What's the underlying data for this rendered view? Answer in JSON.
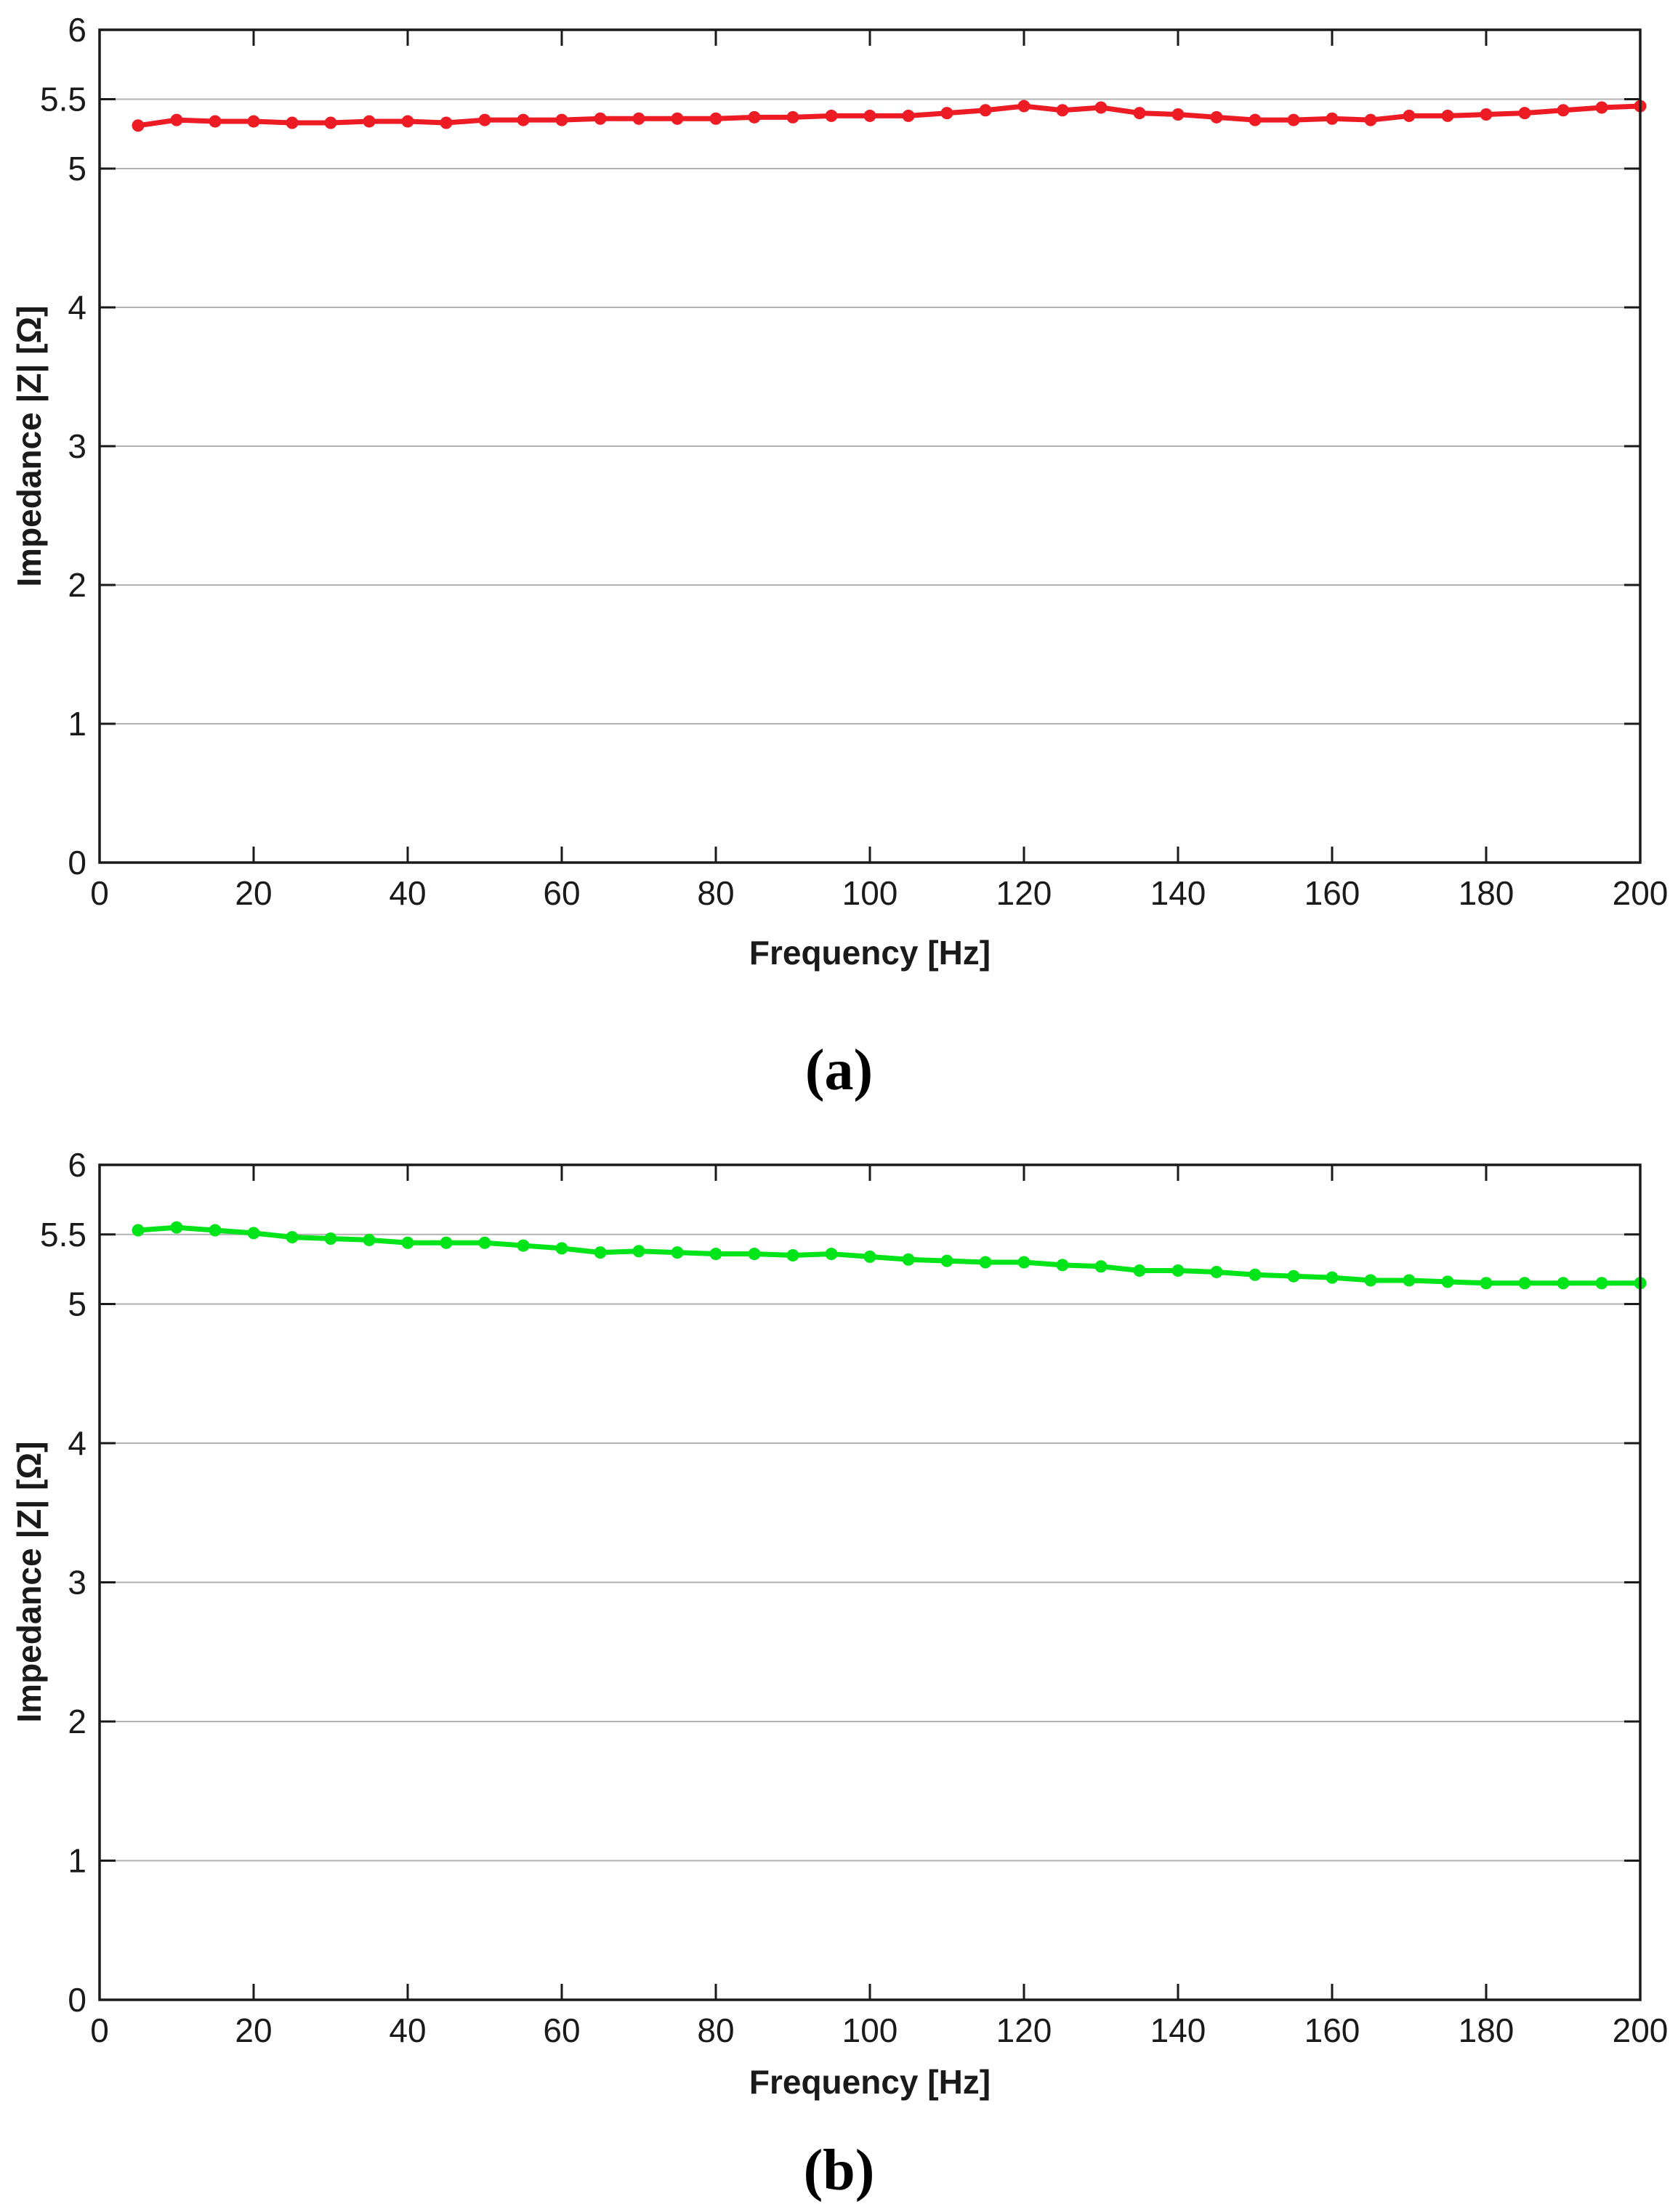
{
  "figure": {
    "background": "#ffffff",
    "axis_color": "#1a1a1a",
    "tick_label_color": "#1a1a1a"
  },
  "chart_data": [
    {
      "type": "line",
      "panel": "a",
      "caption": "(a)",
      "xlabel": "Frequency [Hz]",
      "ylabel": "Impedance |Z| [Ω]",
      "series_name": "impedance-vs-frequency-red",
      "series_color": "#ed1c24",
      "marker": "circle",
      "xlim": [
        0,
        200
      ],
      "ylim": [
        0,
        6
      ],
      "xticks": [
        0,
        20,
        40,
        60,
        80,
        100,
        120,
        140,
        160,
        180,
        200
      ],
      "yticks": [
        0,
        1,
        2,
        3,
        4,
        5,
        5.5,
        6
      ],
      "grid": "horizontal",
      "gridcolor": "#b3b3b3",
      "x": [
        5,
        10,
        15,
        20,
        25,
        30,
        35,
        40,
        45,
        50,
        55,
        60,
        65,
        70,
        75,
        80,
        85,
        90,
        95,
        100,
        105,
        110,
        115,
        120,
        125,
        130,
        135,
        140,
        145,
        150,
        155,
        160,
        165,
        170,
        175,
        180,
        185,
        190,
        195,
        200
      ],
      "y": [
        5.31,
        5.35,
        5.34,
        5.34,
        5.33,
        5.33,
        5.34,
        5.34,
        5.33,
        5.35,
        5.35,
        5.35,
        5.36,
        5.36,
        5.36,
        5.36,
        5.37,
        5.37,
        5.38,
        5.38,
        5.38,
        5.4,
        5.42,
        5.45,
        5.42,
        5.44,
        5.4,
        5.39,
        5.37,
        5.35,
        5.35,
        5.36,
        5.35,
        5.38,
        5.38,
        5.39,
        5.4,
        5.42,
        5.44,
        5.45
      ]
    },
    {
      "type": "line",
      "panel": "b",
      "caption": "(b)",
      "xlabel": "Frequency [Hz]",
      "ylabel": "Impedance |Z| [Ω]",
      "series_name": "impedance-vs-frequency-green",
      "series_color": "#00e419",
      "marker": "circle",
      "xlim": [
        0,
        200
      ],
      "ylim": [
        0,
        6
      ],
      "xticks": [
        0,
        20,
        40,
        60,
        80,
        100,
        120,
        140,
        160,
        180,
        200
      ],
      "yticks": [
        0,
        1,
        2,
        3,
        4,
        5,
        5.5,
        6
      ],
      "grid": "horizontal",
      "gridcolor": "#b3b3b3",
      "x": [
        5,
        10,
        15,
        20,
        25,
        30,
        35,
        40,
        45,
        50,
        55,
        60,
        65,
        70,
        75,
        80,
        85,
        90,
        95,
        100,
        105,
        110,
        115,
        120,
        125,
        130,
        135,
        140,
        145,
        150,
        155,
        160,
        165,
        170,
        175,
        180,
        185,
        190,
        195,
        200
      ],
      "y": [
        5.53,
        5.55,
        5.53,
        5.51,
        5.48,
        5.47,
        5.46,
        5.44,
        5.44,
        5.44,
        5.42,
        5.4,
        5.37,
        5.38,
        5.37,
        5.36,
        5.36,
        5.35,
        5.36,
        5.34,
        5.32,
        5.31,
        5.3,
        5.3,
        5.28,
        5.27,
        5.24,
        5.24,
        5.23,
        5.21,
        5.2,
        5.19,
        5.17,
        5.17,
        5.16,
        5.15,
        5.15,
        5.15,
        5.15,
        5.15
      ]
    }
  ]
}
